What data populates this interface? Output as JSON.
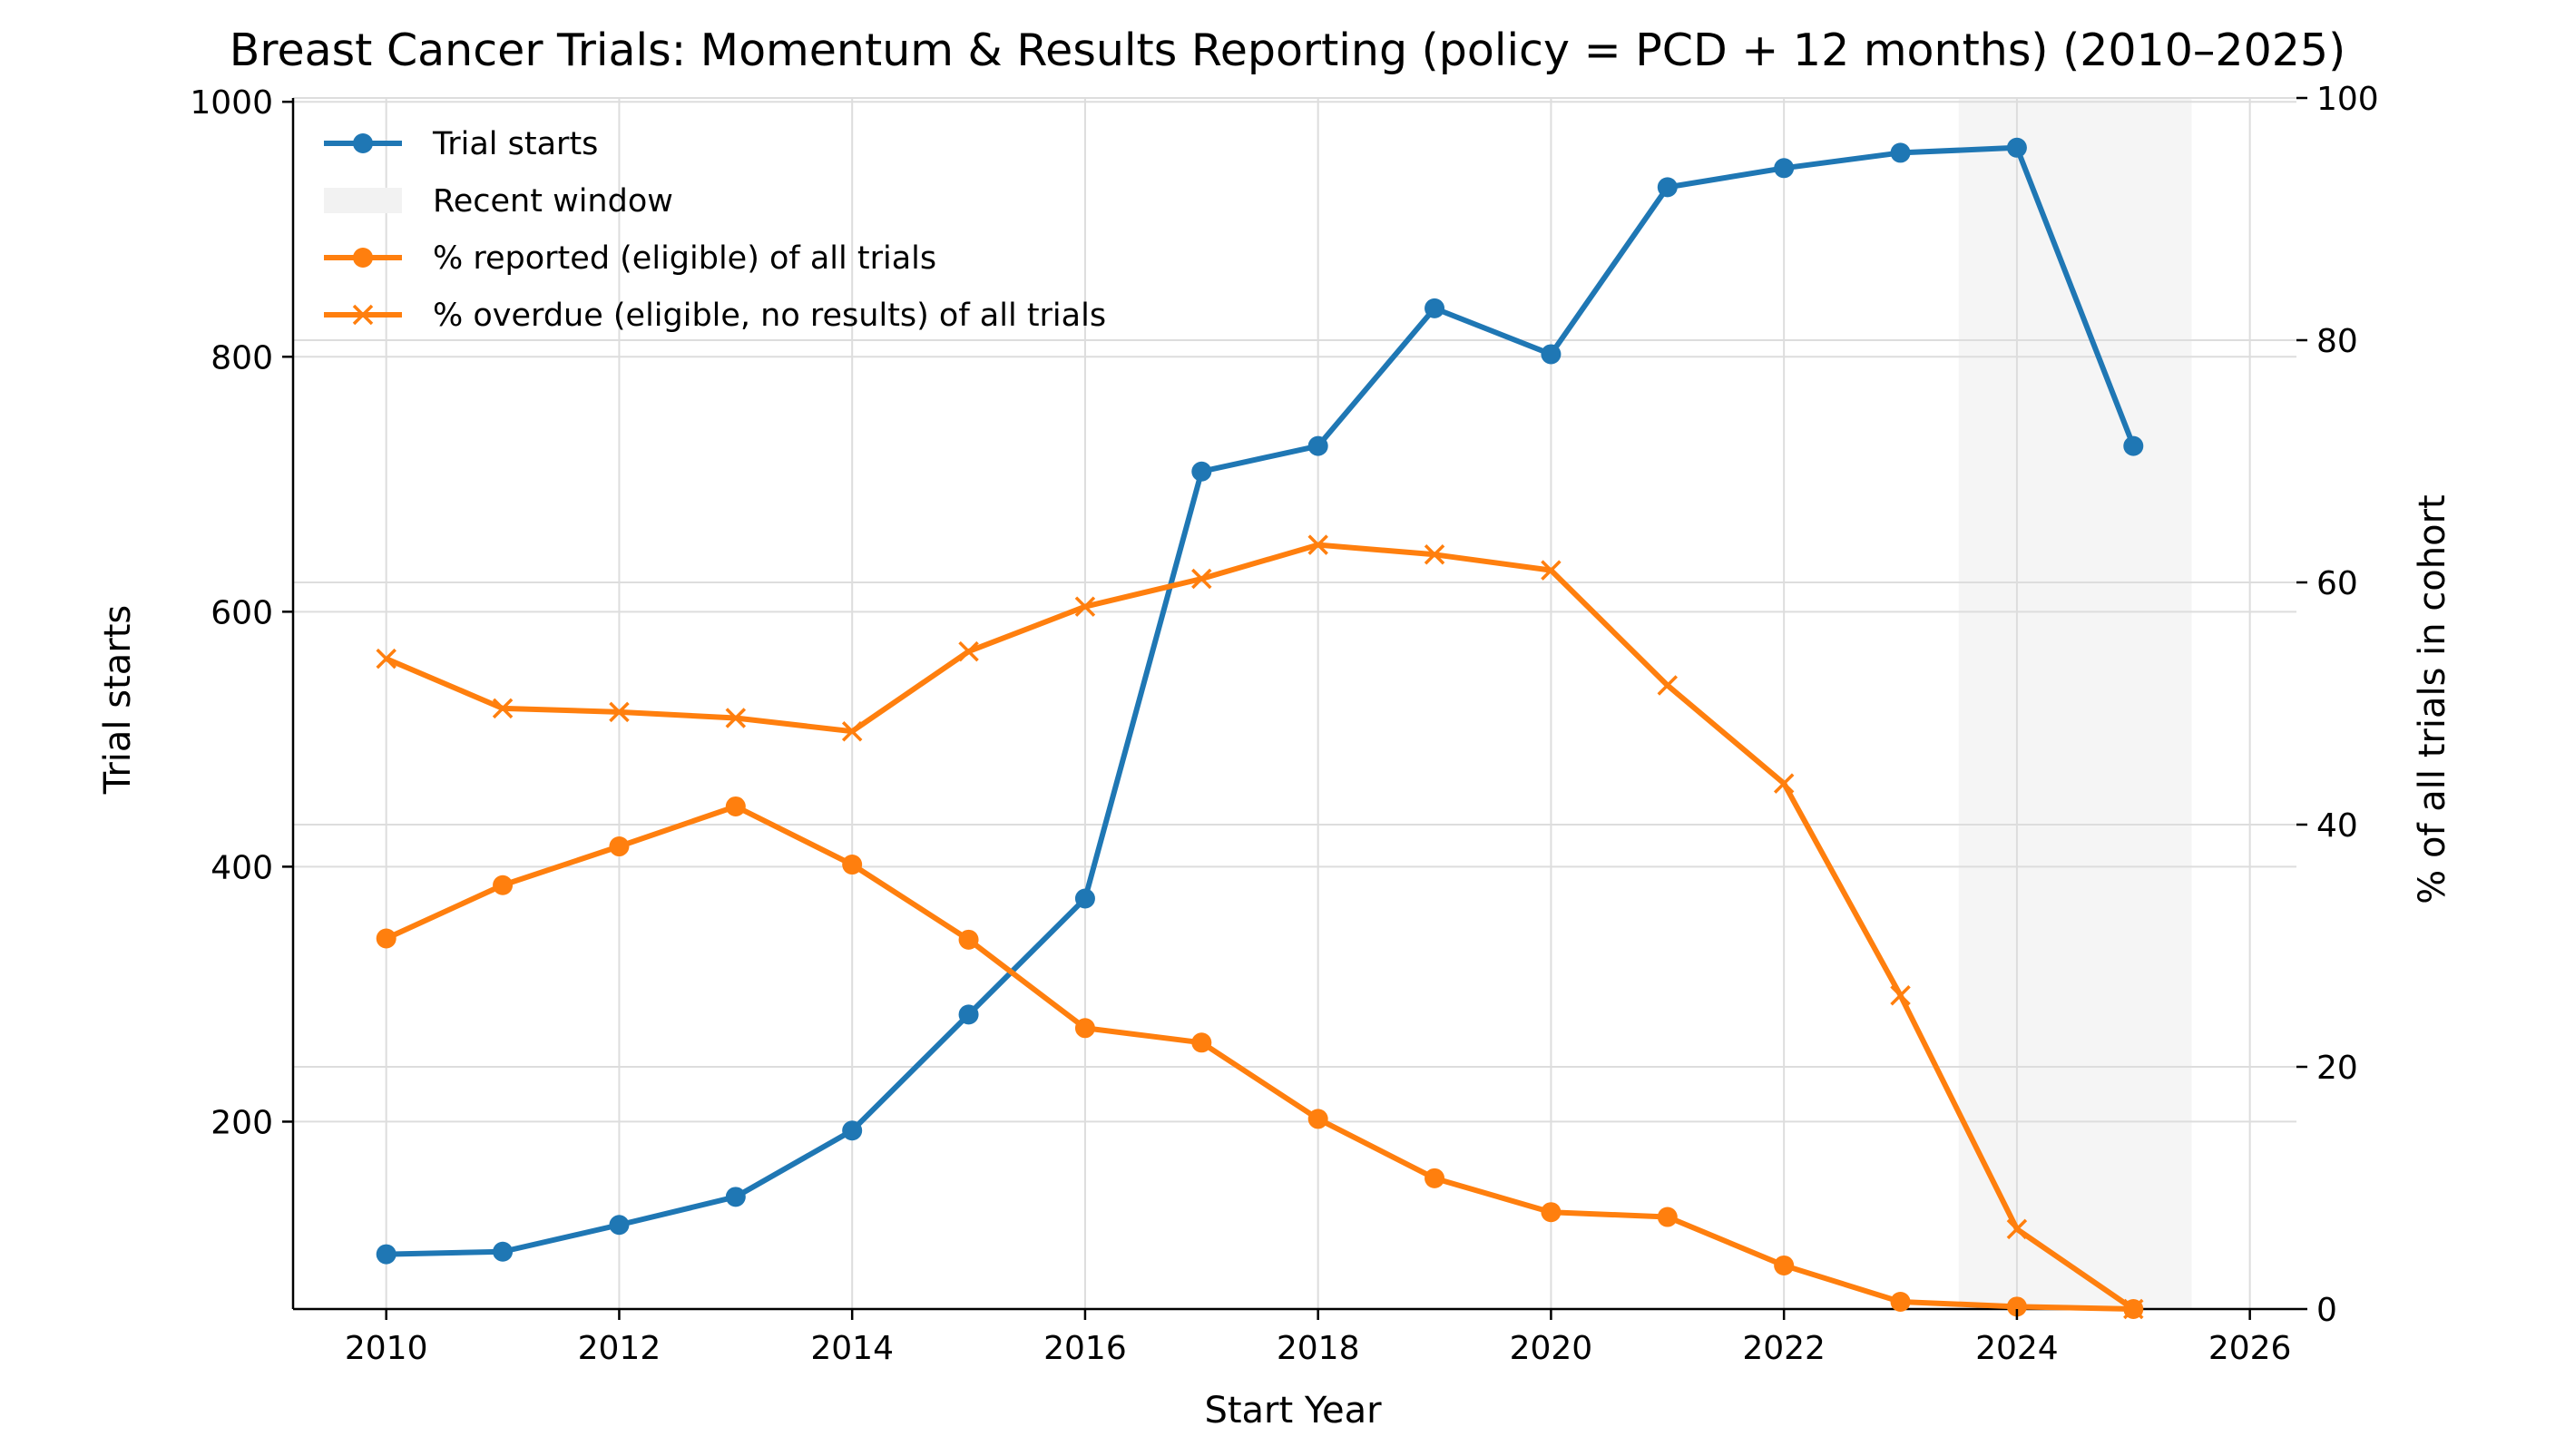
{
  "chart_data": {
    "type": "line",
    "title": "Breast Cancer Trials: Momentum & Results Reporting (policy = PCD + 12 months) (2010–2025)",
    "xlabel": "Start Year",
    "ylabel_left": "Trial starts",
    "ylabel_right": "% of all trials in cohort",
    "x": [
      2010,
      2011,
      2012,
      2013,
      2014,
      2015,
      2016,
      2017,
      2018,
      2019,
      2020,
      2021,
      2022,
      2023,
      2024,
      2025
    ],
    "xlim": [
      2009.2,
      2026.4
    ],
    "xticks": [
      "2010",
      "2012",
      "2014",
      "2016",
      "2018",
      "2020",
      "2022",
      "2024",
      "2026"
    ],
    "ylim_left": [
      53,
      1003
    ],
    "yticks_left": [
      "200",
      "400",
      "600",
      "800",
      "1000"
    ],
    "ylim_right": [
      0,
      100
    ],
    "yticks_right": [
      "0",
      "20",
      "40",
      "60",
      "80",
      "100"
    ],
    "grid": true,
    "legend_position": "top-left",
    "recent_window": {
      "label": "Recent window",
      "x_start": 2023.5,
      "x_end": 2025.5,
      "color": "#f2f2f2"
    },
    "series": [
      {
        "name": "Trial starts",
        "axis": "left",
        "marker": "circle",
        "color": "#1f77b4",
        "values": [
          96,
          98,
          119,
          141,
          193,
          284,
          375,
          710,
          730,
          838,
          802,
          933,
          948,
          960,
          964,
          730
        ]
      },
      {
        "name": "% reported (eligible) of all trials",
        "axis": "right",
        "marker": "circle",
        "color": "#ff7f0e",
        "values": [
          30.6,
          35.0,
          38.2,
          41.5,
          36.7,
          30.5,
          23.2,
          22.0,
          15.7,
          10.8,
          8.0,
          7.6,
          3.6,
          0.6,
          0.2,
          0.0
        ]
      },
      {
        "name": "% overdue (eligible, no results) of all trials",
        "axis": "right",
        "marker": "x",
        "color": "#ff7f0e",
        "values": [
          53.7,
          49.6,
          49.3,
          48.8,
          47.7,
          54.3,
          58.0,
          60.3,
          63.1,
          62.3,
          61.0,
          51.5,
          43.4,
          25.9,
          6.6,
          0.0
        ]
      }
    ]
  }
}
